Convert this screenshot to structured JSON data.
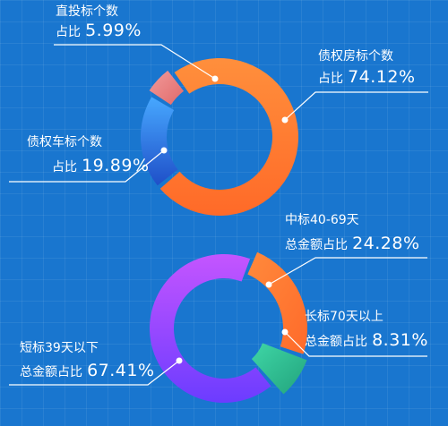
{
  "chart_data": [
    {
      "type": "pie",
      "style": "donut",
      "slices": [
        {
          "label": "直投标个数",
          "prefix": "占比",
          "value": 5.99,
          "display": "5.99%",
          "colors": [
            "#f29a9a",
            "#e06a6a"
          ]
        },
        {
          "label": "债权房标个数",
          "prefix": "占比",
          "value": 74.12,
          "display": "74.12%",
          "colors": [
            "#ff8f3c",
            "#ff6a28"
          ]
        },
        {
          "label": "债权车标个数",
          "prefix": "占比",
          "value": 19.89,
          "display": "19.89%",
          "colors": [
            "#47a8ff",
            "#1f4fc8"
          ]
        }
      ]
    },
    {
      "type": "pie",
      "style": "donut",
      "slices": [
        {
          "label": "中标40-69天",
          "prefix": "总金额占比",
          "value": 24.28,
          "display": "24.28%",
          "colors": [
            "#ff8a3c",
            "#ff6a2a"
          ]
        },
        {
          "label": "长标70天以上",
          "prefix": "总金额占比",
          "value": 8.31,
          "display": "8.31%",
          "colors": [
            "#3fd6a6",
            "#22a37c"
          ]
        },
        {
          "label": "短标39天以下",
          "prefix": "总金额占比",
          "value": 67.41,
          "display": "67.41%",
          "colors": [
            "#c455ff",
            "#6c3cff"
          ]
        }
      ]
    }
  ]
}
